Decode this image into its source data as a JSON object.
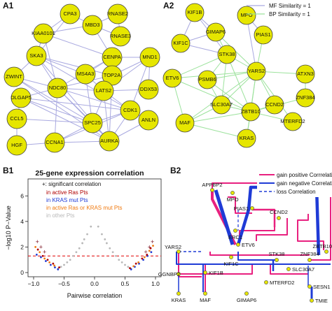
{
  "colors": {
    "node_fill": "#e6e600",
    "node_stroke": "#444444",
    "mf_edge": "#a9a9e0",
    "bp_edge": "#9ce29c",
    "gain_positive": "#e8207f",
    "gain_negative": "#1f3bd6",
    "loss": "#1f3bd6",
    "ras": "#b00000",
    "kras": "#1f3bd6",
    "either": "#f07a10",
    "other": "#b8b8b8",
    "sig_line": "#e00000"
  },
  "panels": {
    "a1": {
      "tag": "A1",
      "nodes": [
        {
          "id": "CPA3"
        },
        {
          "id": "RNASE2"
        },
        {
          "id": "MBD3"
        },
        {
          "id": "KIAA0101"
        },
        {
          "id": "RNASE3"
        },
        {
          "id": "CENPA"
        },
        {
          "id": "SKA3"
        },
        {
          "id": "TOP2A"
        },
        {
          "id": "MND1"
        },
        {
          "id": "ZWINT"
        },
        {
          "id": "MS4A3"
        },
        {
          "id": "DLGAP5"
        },
        {
          "id": "NDC80"
        },
        {
          "id": "LATS2"
        },
        {
          "id": "DDX53"
        },
        {
          "id": "CCL5"
        },
        {
          "id": "CDK1"
        },
        {
          "id": "ANLN"
        },
        {
          "id": "SPC25"
        },
        {
          "id": "HGF"
        },
        {
          "id": "CCNA1"
        },
        {
          "id": "AURKA"
        }
      ]
    },
    "a2": {
      "tag": "A2",
      "legend": [
        {
          "label": "MF Similarity = 1",
          "kind": "mf"
        },
        {
          "label": "BP Similarity = 1",
          "kind": "bp"
        }
      ],
      "nodes": [
        {
          "id": "KIF1B"
        },
        {
          "id": "MPO"
        },
        {
          "id": "GIMAP6"
        },
        {
          "id": "PIAS1"
        },
        {
          "id": "KIF1C"
        },
        {
          "id": "STK38"
        },
        {
          "id": "YARS2"
        },
        {
          "id": "ETV6"
        },
        {
          "id": "PSMB6"
        },
        {
          "id": "ATXN3"
        },
        {
          "id": "ZNF384"
        },
        {
          "id": "CCND2"
        },
        {
          "id": "SLC30A7"
        },
        {
          "id": "ZBTB10"
        },
        {
          "id": "MTERFD2"
        },
        {
          "id": "MAF"
        },
        {
          "id": "KRAS"
        }
      ]
    },
    "b1": {
      "tag": "B1",
      "legend": [
        {
          "label": "+: significant correlation",
          "kind": "sig"
        },
        {
          "label": "in active Ras Pts",
          "kind": "ras"
        },
        {
          "label": "in KRAS mut Pts",
          "kind": "kras"
        },
        {
          "label": "in active Ras or KRAS mut Pts",
          "kind": "either"
        },
        {
          "label": "in other Pts",
          "kind": "other"
        }
      ]
    },
    "b2": {
      "tag": "B2",
      "legend": [
        {
          "label": "gain positive Corrrelation",
          "kind": "gain_positive"
        },
        {
          "label": "gain negative Correlation",
          "kind": "gain_negative"
        },
        {
          "label": "loss Correlation",
          "kind": "loss"
        }
      ],
      "nodes": [
        {
          "id": "APPBP2"
        },
        {
          "id": "MPO"
        },
        {
          "id": "PIAS1"
        },
        {
          "id": "ERC1"
        },
        {
          "id": "CCND2"
        },
        {
          "id": "ETV6"
        },
        {
          "id": "YARS2"
        },
        {
          "id": "ZBTB10"
        },
        {
          "id": "KIF1C"
        },
        {
          "id": "STK38"
        },
        {
          "id": "ZNF384"
        },
        {
          "id": "GGNBP2"
        },
        {
          "id": "KIF1B"
        },
        {
          "id": "SLC30A7"
        },
        {
          "id": "MTERFD2"
        },
        {
          "id": "KRAS"
        },
        {
          "id": "MAF"
        },
        {
          "id": "GIMAP6"
        },
        {
          "id": "SESN1"
        },
        {
          "id": "TMIE"
        }
      ]
    }
  },
  "chart_data": {
    "type": "scatter",
    "title": "25-gene expression correlation",
    "xlabel": "Pairwise correlation",
    "ylabel": "−log10 P−Value",
    "xlim": [
      -1,
      1
    ],
    "ylim": [
      0,
      7
    ],
    "xticks": [
      "−1.0",
      "−0.5",
      "0.0",
      "0.5",
      "1.0"
    ],
    "yticks": [
      "0",
      "2",
      "4",
      "6"
    ],
    "threshold": 1.3,
    "series": [
      {
        "name": "in other Pts",
        "key": "other",
        "points": [
          [
            -0.6,
            0.3
          ],
          [
            -0.5,
            0.6
          ],
          [
            -0.4,
            1.0
          ],
          [
            -0.3,
            1.6
          ],
          [
            -0.2,
            2.3
          ],
          [
            -0.12,
            3.0
          ],
          [
            -0.06,
            3.6
          ],
          [
            -0.55,
            0.45
          ],
          [
            -0.45,
            0.8
          ],
          [
            -0.35,
            1.3
          ],
          [
            -0.25,
            1.9
          ],
          [
            -0.17,
            2.6
          ],
          [
            0.6,
            0.3
          ],
          [
            0.5,
            0.6
          ],
          [
            0.4,
            1.0
          ],
          [
            0.3,
            1.6
          ],
          [
            0.2,
            2.3
          ],
          [
            0.12,
            3.0
          ],
          [
            0.06,
            3.6
          ],
          [
            0.55,
            0.45
          ],
          [
            0.45,
            0.8
          ],
          [
            0.35,
            1.3
          ],
          [
            0.25,
            1.9
          ],
          [
            0.17,
            2.6
          ]
        ]
      },
      {
        "name": "in KRAS mut Pts",
        "key": "kras",
        "points": [
          [
            -0.95,
            1.4
          ],
          [
            -0.88,
            1.2
          ],
          [
            -0.8,
            0.9
          ],
          [
            -0.72,
            0.6
          ],
          [
            -0.65,
            0.4
          ],
          [
            -0.6,
            0.25
          ],
          [
            0.6,
            0.25
          ],
          [
            0.66,
            0.45
          ],
          [
            0.73,
            0.7
          ],
          [
            0.8,
            1.0
          ],
          [
            0.87,
            1.3
          ],
          [
            0.93,
            1.6
          ]
        ]
      },
      {
        "name": "in active Ras Pts",
        "key": "ras",
        "points": [
          [
            -0.93,
            1.8
          ],
          [
            -0.85,
            1.3
          ],
          [
            -0.77,
            1.0
          ],
          [
            -0.68,
            0.7
          ],
          [
            -0.58,
            0.4
          ],
          [
            0.58,
            0.35
          ],
          [
            0.68,
            0.7
          ],
          [
            0.78,
            1.1
          ],
          [
            0.86,
            1.4
          ],
          [
            0.92,
            1.9
          ]
        ]
      },
      {
        "name": "in active Ras or KRAS mut Pts",
        "key": "either",
        "points": [
          [
            -0.97,
            2.0
          ],
          [
            -0.9,
            1.6
          ],
          [
            -0.82,
            1.1
          ],
          [
            -0.74,
            0.8
          ],
          [
            -0.66,
            0.55
          ],
          [
            0.64,
            0.5
          ],
          [
            0.72,
            0.8
          ],
          [
            0.82,
            1.2
          ],
          [
            0.9,
            1.7
          ],
          [
            0.96,
            2.1
          ]
        ]
      },
      {
        "name": "+: significant correlation",
        "key": "sig",
        "points": [
          [
            -0.94,
            2.4
          ],
          [
            -0.88,
            2.0
          ],
          [
            -0.82,
            1.6
          ],
          [
            0.84,
            1.6
          ],
          [
            0.9,
            2.0
          ],
          [
            0.95,
            2.4
          ]
        ]
      }
    ]
  }
}
